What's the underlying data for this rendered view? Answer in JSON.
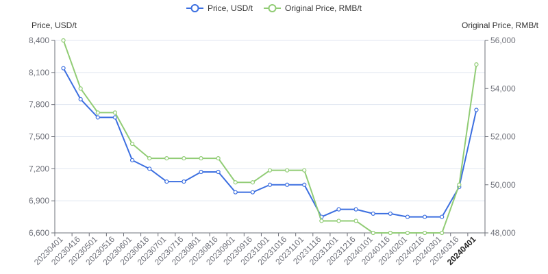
{
  "chart_data": {
    "type": "line",
    "xlabel": "",
    "ylabel": "Price, USD/t",
    "y2label": "Original Price, RMB/t",
    "legend_position": "top-center",
    "categories": [
      "20230401",
      "20230416",
      "20230501",
      "20230516",
      "20230601",
      "20230616",
      "20230701",
      "20230716",
      "20230801",
      "20230816",
      "20230901",
      "20230916",
      "20231001",
      "20231016",
      "20231101",
      "20231116",
      "20231201",
      "20231216",
      "20240101",
      "20240116",
      "20240201",
      "20240216",
      "20240301",
      "20240316",
      "20240401"
    ],
    "ylim": [
      6600,
      8400
    ],
    "yticks": [
      6600,
      6900,
      7200,
      7500,
      7800,
      8100,
      8400
    ],
    "ytick_labels": [
      "6,600",
      "6,900",
      "7,200",
      "7,500",
      "7,800",
      "8,100",
      "8,400"
    ],
    "y2lim": [
      48000,
      56000
    ],
    "y2ticks": [
      48000,
      50000,
      52000,
      54000,
      56000
    ],
    "y2tick_labels": [
      "48,000",
      "50,000",
      "52,000",
      "54,000",
      "56,000"
    ],
    "grid": true,
    "series": [
      {
        "name": "Price, USD/t",
        "axis": "left",
        "color": "#3c6fe0",
        "values": [
          8140,
          7850,
          7680,
          7680,
          7280,
          7200,
          7080,
          7080,
          7170,
          7170,
          6980,
          6980,
          7050,
          7050,
          7050,
          6750,
          6820,
          6820,
          6780,
          6780,
          6750,
          6750,
          6750,
          7030,
          7750
        ]
      },
      {
        "name": "Original Price, RMB/t",
        "axis": "right",
        "color": "#91cc75",
        "values": [
          56000,
          54000,
          53000,
          53000,
          51700,
          51100,
          51100,
          51100,
          51100,
          51100,
          50100,
          50100,
          50600,
          50600,
          50600,
          48500,
          48500,
          48500,
          48000,
          48000,
          48000,
          48000,
          48000,
          50000,
          55000
        ]
      }
    ]
  }
}
